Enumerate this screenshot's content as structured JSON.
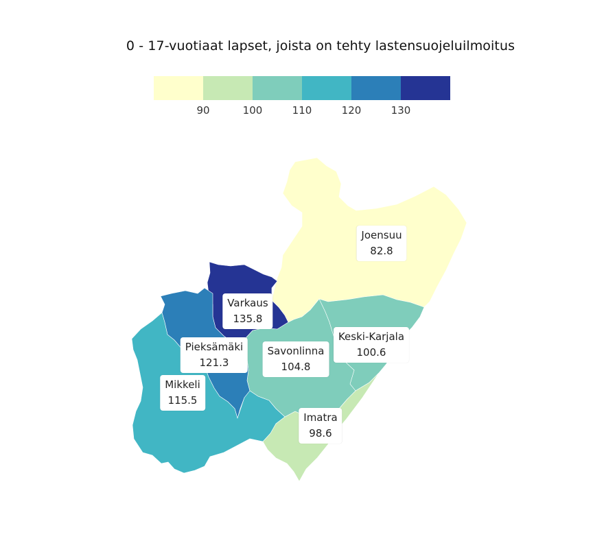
{
  "title": "0 - 17-vuotiaat lapset, joista on tehty lastensuojeluilmoitus",
  "legend": {
    "colors": [
      "#ffffcc",
      "#c7e9b4",
      "#7fcdbb",
      "#41b6c4",
      "#2c7fb8",
      "#253494"
    ],
    "ticks": [
      "90",
      "100",
      "110",
      "120",
      "130"
    ]
  },
  "regions": [
    {
      "name": "Joensuu",
      "value": "82.8",
      "color": "#ffffcc"
    },
    {
      "name": "Varkaus",
      "value": "135.8",
      "color": "#253494"
    },
    {
      "name": "Pieksämäki",
      "value": "121.3",
      "color": "#2c7fb8"
    },
    {
      "name": "Mikkeli",
      "value": "115.5",
      "color": "#41b6c4"
    },
    {
      "name": "Savonlinna",
      "value": "104.8",
      "color": "#7fcdbb"
    },
    {
      "name": "Keski-Karjala",
      "value": "100.6",
      "color": "#7fcdbb"
    },
    {
      "name": "Imatra",
      "value": "98.6",
      "color": "#c7e9b4"
    }
  ]
}
